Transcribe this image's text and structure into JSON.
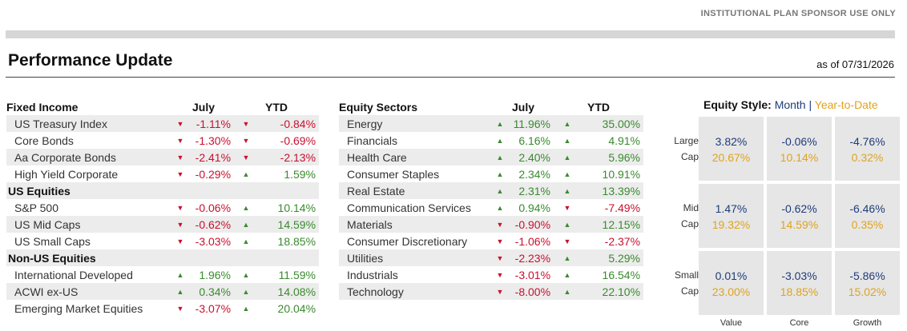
{
  "header": {
    "notice": "INSTITUTIONAL PLAN SPONSOR USE ONLY",
    "title": "Performance Update",
    "as_of": "as of 07/31/2026"
  },
  "fixed_income": {
    "heading": "Fixed Income",
    "col_july": "July",
    "col_ytd": "YTD",
    "rows": [
      {
        "name": "US Treasury Index",
        "july": "-1.11%",
        "july_dir": "down",
        "ytd": "-0.84%",
        "ytd_dir": "down",
        "group": false
      },
      {
        "name": "Core Bonds",
        "july": "-1.30%",
        "july_dir": "down",
        "ytd": "-0.69%",
        "ytd_dir": "down",
        "group": false
      },
      {
        "name": "Aa Corporate Bonds",
        "july": "-2.41%",
        "july_dir": "down",
        "ytd": "-2.13%",
        "ytd_dir": "down",
        "group": false
      },
      {
        "name": "High Yield Corporate",
        "july": "-0.29%",
        "july_dir": "down",
        "ytd": "1.59%",
        "ytd_dir": "up",
        "group": false
      },
      {
        "name": "US Equities",
        "july": "",
        "july_dir": "",
        "ytd": "",
        "ytd_dir": "",
        "group": true
      },
      {
        "name": "S&P 500",
        "july": "-0.06%",
        "july_dir": "down",
        "ytd": "10.14%",
        "ytd_dir": "up",
        "group": false
      },
      {
        "name": "US Mid Caps",
        "july": "-0.62%",
        "july_dir": "down",
        "ytd": "14.59%",
        "ytd_dir": "up",
        "group": false
      },
      {
        "name": "US Small Caps",
        "july": "-3.03%",
        "july_dir": "down",
        "ytd": "18.85%",
        "ytd_dir": "up",
        "group": false
      },
      {
        "name": "Non-US Equities",
        "july": "",
        "july_dir": "",
        "ytd": "",
        "ytd_dir": "",
        "group": true
      },
      {
        "name": "International Developed",
        "july": "1.96%",
        "july_dir": "up",
        "ytd": "11.59%",
        "ytd_dir": "up",
        "group": false
      },
      {
        "name": "ACWI ex-US",
        "july": "0.34%",
        "july_dir": "up",
        "ytd": "14.08%",
        "ytd_dir": "up",
        "group": false
      },
      {
        "name": "Emerging Market Equities",
        "july": "-3.07%",
        "july_dir": "down",
        "ytd": "20.04%",
        "ytd_dir": "up",
        "group": false
      }
    ]
  },
  "equity_sectors": {
    "heading": "Equity Sectors",
    "col_july": "July",
    "col_ytd": "YTD",
    "rows": [
      {
        "name": "Energy",
        "july": "11.96%",
        "july_dir": "up",
        "ytd": "35.00%",
        "ytd_dir": "up"
      },
      {
        "name": "Financials",
        "july": "6.16%",
        "july_dir": "up",
        "ytd": "4.91%",
        "ytd_dir": "up"
      },
      {
        "name": "Health Care",
        "july": "2.40%",
        "july_dir": "up",
        "ytd": "5.96%",
        "ytd_dir": "up"
      },
      {
        "name": "Consumer Staples",
        "july": "2.34%",
        "july_dir": "up",
        "ytd": "10.91%",
        "ytd_dir": "up"
      },
      {
        "name": "Real Estate",
        "july": "2.31%",
        "july_dir": "up",
        "ytd": "13.39%",
        "ytd_dir": "up"
      },
      {
        "name": "Communication Services",
        "july": "0.94%",
        "july_dir": "up",
        "ytd": "-7.49%",
        "ytd_dir": "down"
      },
      {
        "name": "Materials",
        "july": "-0.90%",
        "july_dir": "down",
        "ytd": "12.15%",
        "ytd_dir": "up"
      },
      {
        "name": "Consumer Discretionary",
        "july": "-1.06%",
        "july_dir": "down",
        "ytd": "-2.37%",
        "ytd_dir": "down"
      },
      {
        "name": "Utilities",
        "july": "-2.23%",
        "july_dir": "down",
        "ytd": "5.29%",
        "ytd_dir": "up"
      },
      {
        "name": "Industrials",
        "july": "-3.01%",
        "july_dir": "down",
        "ytd": "16.54%",
        "ytd_dir": "up"
      },
      {
        "name": "Technology",
        "july": "-8.00%",
        "july_dir": "down",
        "ytd": "22.10%",
        "ytd_dir": "up"
      }
    ]
  },
  "equity_style": {
    "heading": "Equity Style:",
    "month_label": "Month",
    "separator": "|",
    "ytd_label": "Year-to-Date",
    "columns": [
      "Value",
      "Core",
      "Growth"
    ],
    "rows": [
      {
        "label_1": "Large",
        "label_2": "Cap",
        "month": [
          "3.82%",
          "-0.06%",
          "-4.76%"
        ],
        "ytd": [
          "20.67%",
          "10.14%",
          "0.32%"
        ]
      },
      {
        "label_1": "Mid",
        "label_2": "Cap",
        "month": [
          "1.47%",
          "-0.62%",
          "-6.46%"
        ],
        "ytd": [
          "19.32%",
          "14.59%",
          "0.35%"
        ]
      },
      {
        "label_1": "Small",
        "label_2": "Cap",
        "month": [
          "0.01%",
          "-3.03%",
          "-5.86%"
        ],
        "ytd": [
          "23.00%",
          "18.85%",
          "15.02%"
        ]
      }
    ]
  },
  "colors": {
    "up": "#3a8a2e",
    "down": "#c8102e",
    "month": "#1f3c7a",
    "ytd": "#e0a31c"
  },
  "icons": {
    "up": "triangle-up-icon",
    "down": "triangle-down-icon"
  }
}
